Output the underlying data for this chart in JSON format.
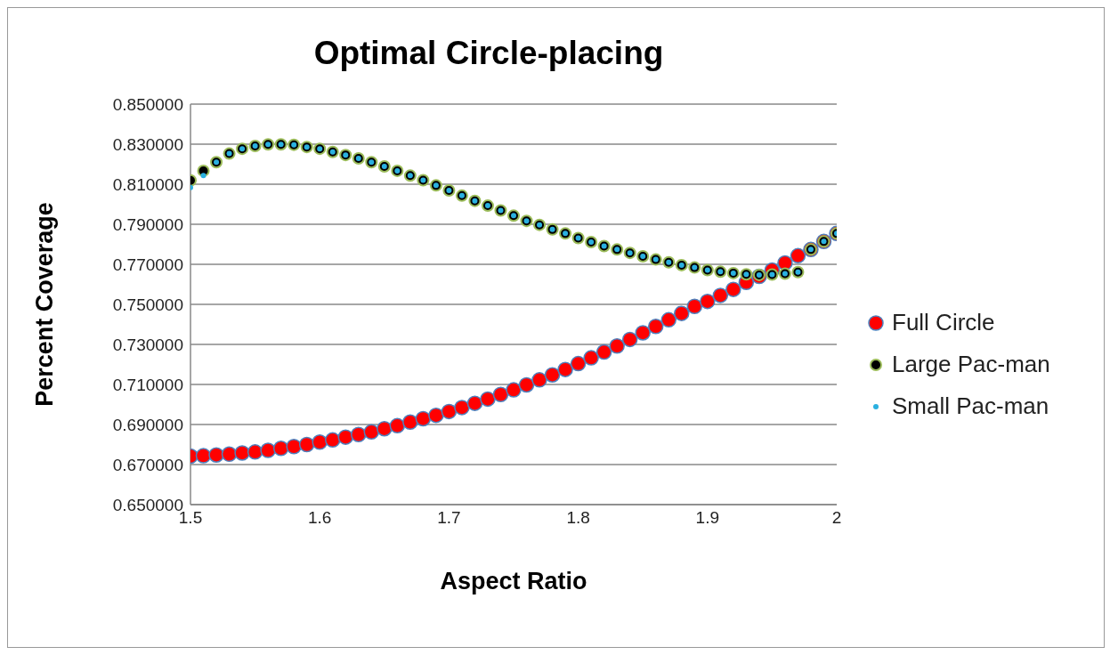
{
  "chart_data": {
    "type": "scatter",
    "title": "Optimal Circle-placing",
    "xlabel": "Aspect Ratio",
    "ylabel": "Percent Coverage",
    "x": [
      1.5,
      1.51,
      1.52,
      1.53,
      1.54,
      1.55,
      1.56,
      1.57,
      1.58,
      1.59,
      1.6,
      1.61,
      1.62,
      1.63,
      1.64,
      1.65,
      1.66,
      1.67,
      1.68,
      1.69,
      1.7,
      1.71,
      1.72,
      1.73,
      1.74,
      1.75,
      1.76,
      1.77,
      1.78,
      1.79,
      1.8,
      1.81,
      1.82,
      1.83,
      1.84,
      1.85,
      1.86,
      1.87,
      1.88,
      1.89,
      1.9,
      1.91,
      1.92,
      1.93,
      1.94,
      1.95,
      1.96,
      1.97,
      1.98,
      1.99,
      2.0
    ],
    "series": [
      {
        "name": "Full Circle",
        "color": "#ff0000",
        "values": [
          0.6742,
          0.6744,
          0.6748,
          0.6752,
          0.6758,
          0.6763,
          0.6771,
          0.6781,
          0.679,
          0.68,
          0.6812,
          0.6823,
          0.6837,
          0.685,
          0.6863,
          0.6879,
          0.6894,
          0.6912,
          0.6929,
          0.6946,
          0.6965,
          0.6985,
          0.7006,
          0.7027,
          0.705,
          0.7073,
          0.7098,
          0.7123,
          0.7148,
          0.7175,
          0.7204,
          0.7233,
          0.7262,
          0.7292,
          0.7325,
          0.7358,
          0.739,
          0.7423,
          0.7455,
          0.749,
          0.7515,
          0.7545,
          0.7575,
          0.761,
          0.764,
          0.7671,
          0.7707,
          0.7743,
          0.7774,
          0.7814,
          0.7854
        ]
      },
      {
        "name": "Large Pac-man",
        "color": "#000000",
        "values": [
          0.8119,
          0.8167,
          0.821,
          0.8253,
          0.8277,
          0.8291,
          0.8299,
          0.8299,
          0.8297,
          0.8286,
          0.8277,
          0.8261,
          0.8246,
          0.8229,
          0.821,
          0.8189,
          0.8167,
          0.8143,
          0.812,
          0.8094,
          0.8069,
          0.8043,
          0.8017,
          0.7993,
          0.7969,
          0.7943,
          0.7917,
          0.7897,
          0.7874,
          0.7854,
          0.7831,
          0.7811,
          0.7791,
          0.7774,
          0.7757,
          0.774,
          0.7724,
          0.771,
          0.7696,
          0.7684,
          0.7671,
          0.7663,
          0.7656,
          0.765,
          0.7647,
          0.7649,
          0.7653,
          0.7661,
          0.7774,
          0.7814,
          0.7854
        ]
      },
      {
        "name": "Small Pac-man",
        "color": "#2ab0e0",
        "values": [
          0.8083,
          0.8143,
          0.821,
          0.8253,
          0.8277,
          0.8291,
          0.8299,
          0.8299,
          0.8297,
          0.8286,
          0.8277,
          0.8261,
          0.8246,
          0.8229,
          0.821,
          0.8189,
          0.8167,
          0.8143,
          0.812,
          0.8094,
          0.8069,
          0.8043,
          0.8017,
          0.7993,
          0.7969,
          0.7943,
          0.7917,
          0.7897,
          0.7874,
          0.7854,
          0.7831,
          0.7811,
          0.7791,
          0.7774,
          0.7757,
          0.774,
          0.7724,
          0.771,
          0.7696,
          0.7684,
          0.7671,
          0.7663,
          0.7656,
          0.765,
          0.7647,
          0.7649,
          0.7653,
          0.7661,
          0.7774,
          0.7814,
          0.7854
        ]
      }
    ],
    "xlim": [
      1.5,
      2.0
    ],
    "xticks": [
      1.5,
      1.6,
      1.7,
      1.8,
      1.9,
      2
    ],
    "ylim": [
      0.65,
      0.85
    ],
    "yticks": [
      {
        "value": 0.65,
        "label": "0.650000"
      },
      {
        "value": 0.67,
        "label": "0.670000"
      },
      {
        "value": 0.69,
        "label": "0.690000"
      },
      {
        "value": 0.71,
        "label": "0.710000"
      },
      {
        "value": 0.73,
        "label": "0.730000"
      },
      {
        "value": 0.75,
        "label": "0.750000"
      },
      {
        "value": 0.77,
        "label": "0.770000"
      },
      {
        "value": 0.79,
        "label": "0.790000"
      },
      {
        "value": 0.81,
        "label": "0.810000"
      },
      {
        "value": 0.83,
        "label": "0.830000"
      },
      {
        "value": 0.85,
        "label": "0.850000"
      }
    ],
    "grid": "y",
    "legend": "right",
    "marker": "circle"
  }
}
